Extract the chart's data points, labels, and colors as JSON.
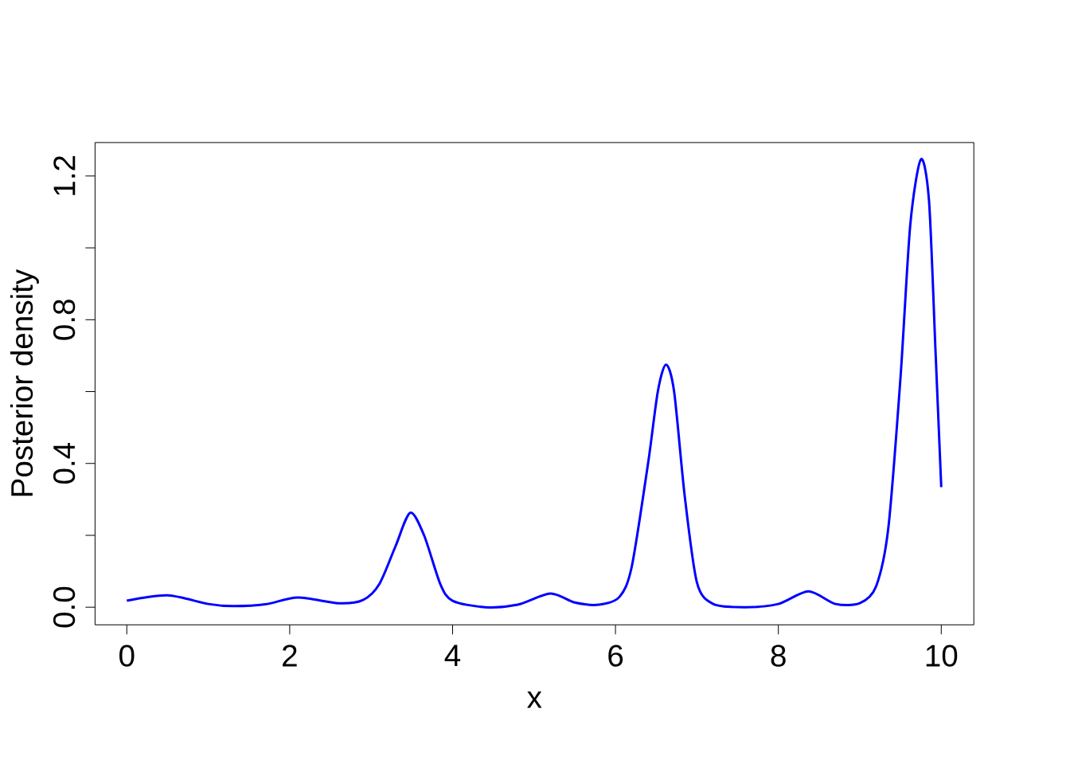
{
  "chart_data": {
    "type": "line",
    "xlabel": "x",
    "ylabel": "Posterior density",
    "xlim": [
      -0.39,
      10.4
    ],
    "ylim": [
      -0.049,
      1.293
    ],
    "xticks": [
      0,
      2,
      4,
      6,
      8,
      10
    ],
    "yticks": [
      {
        "value": 0.0,
        "label": "0.0"
      },
      {
        "value": 0.2,
        "label": null
      },
      {
        "value": 0.4,
        "label": "0.4"
      },
      {
        "value": 0.6,
        "label": null
      },
      {
        "value": 0.8,
        "label": "0.8"
      },
      {
        "value": 1.0,
        "label": null
      },
      {
        "value": 1.2,
        "label": "1.2"
      }
    ],
    "series": [
      {
        "color": "#0000ff",
        "x": [
          0,
          0.5,
          1.0,
          1.3,
          1.7,
          2.1,
          2.6,
          2.9,
          3.1,
          3.3,
          3.48,
          3.65,
          3.85,
          4.0,
          4.4,
          4.8,
          5.2,
          5.5,
          5.8,
          6.05,
          6.2,
          6.4,
          6.52,
          6.62,
          6.72,
          6.85,
          7.0,
          7.2,
          7.6,
          8.0,
          8.37,
          8.7,
          9.0,
          9.2,
          9.35,
          9.5,
          9.62,
          9.75,
          9.85,
          9.93,
          10.0
        ],
        "values": [
          0.018,
          0.033,
          0.009,
          0.003,
          0.008,
          0.027,
          0.011,
          0.02,
          0.064,
          0.17,
          0.263,
          0.2,
          0.064,
          0.018,
          0.0,
          0.007,
          0.038,
          0.013,
          0.007,
          0.029,
          0.113,
          0.4,
          0.6,
          0.675,
          0.6,
          0.31,
          0.069,
          0.009,
          0.0,
          0.009,
          0.044,
          0.009,
          0.011,
          0.058,
          0.22,
          0.64,
          1.065,
          1.246,
          1.13,
          0.71,
          0.334
        ]
      }
    ]
  }
}
